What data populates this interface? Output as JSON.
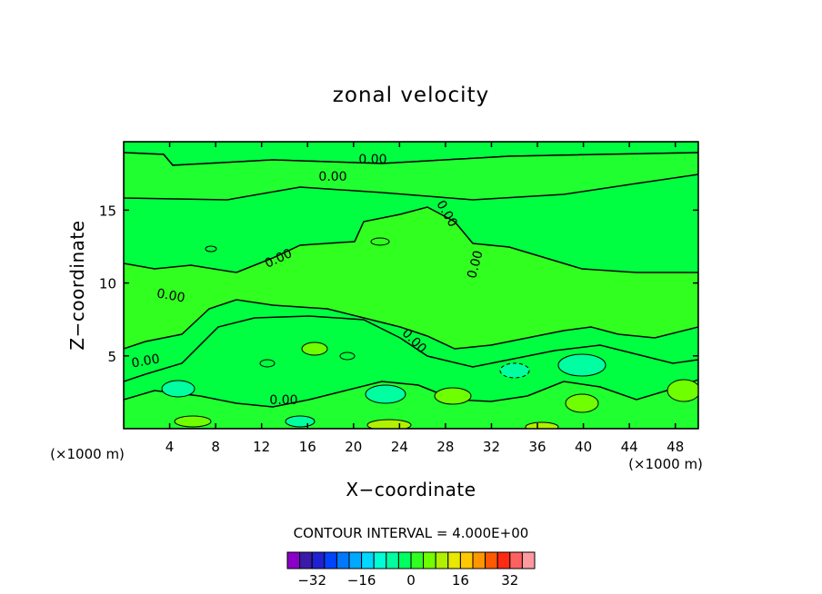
{
  "chart_data": {
    "type": "contour",
    "title": "zonal velocity",
    "xlabel": "X−coordinate",
    "ylabel": "Z−coordinate",
    "x_unit_left": "(×1000 m)",
    "x_unit_right": "(×1000 m)",
    "x_ticks": [
      "4",
      "8",
      "12",
      "16",
      "20",
      "24",
      "28",
      "32",
      "36",
      "40",
      "44",
      "48"
    ],
    "x_tick_values": [
      4,
      8,
      12,
      16,
      20,
      24,
      28,
      32,
      36,
      40,
      44,
      48
    ],
    "y_ticks": [
      "5",
      "10",
      "15"
    ],
    "y_tick_values": [
      5,
      10,
      15
    ],
    "xlim": [
      0,
      50
    ],
    "ylim": [
      0,
      19.7
    ],
    "contour_interval_text": "CONTOUR INTERVAL = 4.000E+00",
    "contour_interval": 4.0,
    "contour_labels": [
      "0.00",
      "0.00",
      "0.00",
      "0.00",
      "0.00",
      "0.00",
      "0.00",
      "0.00",
      "0.00"
    ],
    "colorbar": {
      "levels": [
        -36,
        -32,
        -28,
        -24,
        -20,
        -16,
        -12,
        -8,
        -4,
        0,
        4,
        8,
        12,
        16,
        20,
        24,
        28,
        32,
        36
      ],
      "colors": [
        "#8a00c8",
        "#3a1aa8",
        "#1e22d0",
        "#0044ff",
        "#0078ff",
        "#00a8ff",
        "#00d8ff",
        "#00ffd8",
        "#00ffa0",
        "#00ff60",
        "#30ff20",
        "#70ff00",
        "#b0f000",
        "#e8e800",
        "#ffc800",
        "#ff9600",
        "#ff5a00",
        "#ff2a14",
        "#ff6060",
        "#ff9aa0"
      ],
      "tick_labels": [
        "−32",
        "−16",
        "0",
        "16",
        "32"
      ],
      "tick_values": [
        -32,
        -16,
        0,
        16,
        32
      ]
    }
  }
}
